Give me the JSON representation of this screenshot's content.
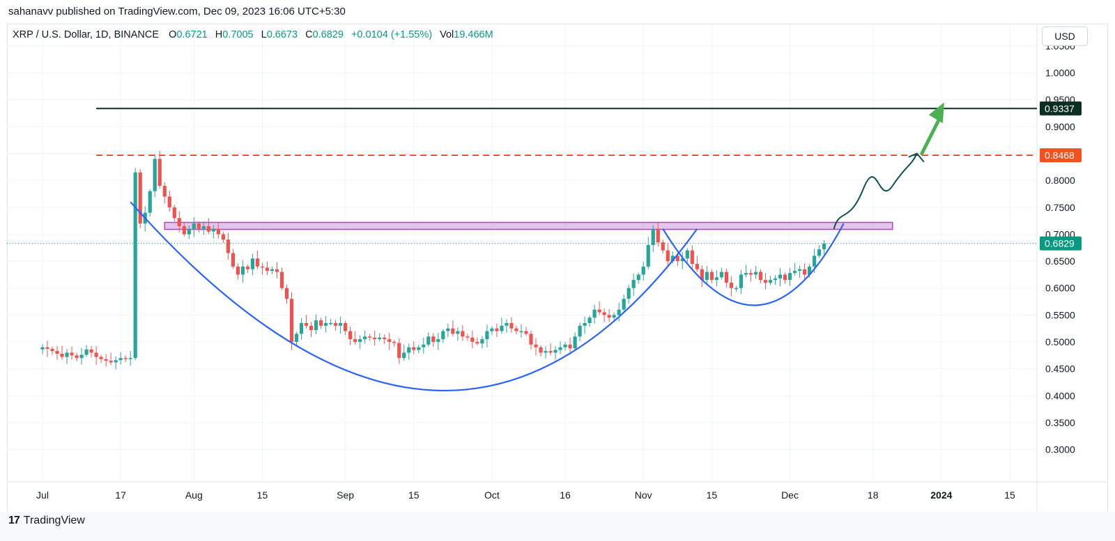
{
  "publisher_line": "sahanavv published on TradingView.com, Dec 09, 2023 16:06 UTC+5:30",
  "legend": {
    "symbol": "XRP / U.S. Dollar, 1D, BINANCE",
    "open_label": "O",
    "open": "0.6721",
    "high_label": "H",
    "high": "0.7005",
    "low_label": "L",
    "low": "0.6673",
    "close_label": "C",
    "close": "0.6829",
    "change": "+0.0104 (+1.55%)",
    "vol_label": "Vol",
    "vol": "19.466M"
  },
  "currency_button": "USD",
  "footer": {
    "brand": "TradingView",
    "logo_glyph": "17"
  },
  "colors": {
    "up": "#26a69a",
    "down": "#ef5350",
    "resistance": "#0b2e22",
    "dashed": "#f4511e",
    "zone": "#ce93d8",
    "curve": "#2962ff",
    "arrow": "#4caf50",
    "path": "#0d4f4a",
    "price_line": "#089981"
  },
  "chart_data": {
    "type": "candlestick",
    "title": "XRP / U.S. Dollar, 1D, BINANCE",
    "start_date": "2023-06-25",
    "ylim": [
      0.24,
      1.09
    ],
    "yticks": [
      "1.0500",
      "1.0000",
      "0.9500",
      "0.9000",
      "0.8500",
      "0.8000",
      "0.7500",
      "0.7000",
      "0.6500",
      "0.6000",
      "0.5500",
      "0.5000",
      "0.4500",
      "0.4000",
      "0.3500",
      "0.3000"
    ],
    "xticks": [
      {
        "label": "Jul",
        "date": "2023-07-01"
      },
      {
        "label": "17",
        "date": "2023-07-17"
      },
      {
        "label": "Aug",
        "date": "2023-08-01"
      },
      {
        "label": "15",
        "date": "2023-08-15"
      },
      {
        "label": "Sep",
        "date": "2023-09-01"
      },
      {
        "label": "15",
        "date": "2023-09-15"
      },
      {
        "label": "Oct",
        "date": "2023-10-01"
      },
      {
        "label": "16",
        "date": "2023-10-16"
      },
      {
        "label": "Nov",
        "date": "2023-11-01"
      },
      {
        "label": "15",
        "date": "2023-11-15"
      },
      {
        "label": "Dec",
        "date": "2023-12-01"
      },
      {
        "label": "18",
        "date": "2023-12-18"
      },
      {
        "label": "2024",
        "date": "2024-01-01"
      },
      {
        "label": "15",
        "date": "2024-01-15"
      }
    ],
    "closes": [
      0.49,
      0.487,
      0.483,
      0.478,
      0.472,
      0.48,
      0.475,
      0.47,
      0.476,
      0.486,
      0.48,
      0.472,
      0.468,
      0.465,
      0.462,
      0.466,
      0.47,
      0.468,
      0.47,
      0.815,
      0.72,
      0.74,
      0.78,
      0.84,
      0.79,
      0.77,
      0.75,
      0.73,
      0.715,
      0.7,
      0.71,
      0.72,
      0.71,
      0.715,
      0.705,
      0.71,
      0.7,
      0.69,
      0.665,
      0.64,
      0.625,
      0.64,
      0.635,
      0.655,
      0.64,
      0.638,
      0.632,
      0.635,
      0.63,
      0.6,
      0.58,
      0.5,
      0.515,
      0.535,
      0.53,
      0.522,
      0.54,
      0.53,
      0.535,
      0.535,
      0.53,
      0.535,
      0.52,
      0.505,
      0.5,
      0.505,
      0.51,
      0.508,
      0.505,
      0.508,
      0.505,
      0.5,
      0.498,
      0.47,
      0.48,
      0.49,
      0.485,
      0.49,
      0.495,
      0.51,
      0.5,
      0.505,
      0.52,
      0.525,
      0.515,
      0.52,
      0.51,
      0.508,
      0.5,
      0.497,
      0.505,
      0.52,
      0.525,
      0.52,
      0.53,
      0.535,
      0.525,
      0.52,
      0.52,
      0.515,
      0.495,
      0.49,
      0.48,
      0.483,
      0.48,
      0.485,
      0.49,
      0.495,
      0.488,
      0.51,
      0.53,
      0.535,
      0.545,
      0.56,
      0.555,
      0.55,
      0.545,
      0.55,
      0.56,
      0.58,
      0.6,
      0.615,
      0.625,
      0.64,
      0.68,
      0.71,
      0.685,
      0.67,
      0.65,
      0.66,
      0.65,
      0.655,
      0.67,
      0.645,
      0.635,
      0.615,
      0.63,
      0.615,
      0.62,
      0.63,
      0.61,
      0.6,
      0.6,
      0.625,
      0.628,
      0.625,
      0.63,
      0.615,
      0.61,
      0.615,
      0.618,
      0.625,
      0.615,
      0.628,
      0.632,
      0.635,
      0.625,
      0.64,
      0.66,
      0.672,
      0.683
    ],
    "annotations": [
      {
        "type": "horizontal_line",
        "label": "0.9337",
        "value": 0.9337,
        "from_date": "2023-07-12"
      },
      {
        "type": "horizontal_dashed",
        "label": "0.8468",
        "value": 0.8468,
        "from_date": "2023-07-12"
      },
      {
        "type": "zone",
        "from_date": "2023-07-26",
        "to_date": "2023-12-22",
        "low": 0.709,
        "high": 0.722
      },
      {
        "type": "price_line",
        "label": "0.6829",
        "value": 0.6829
      },
      {
        "type": "bowl_curve",
        "points": [
          [
            "2023-07-19",
            0.76
          ],
          [
            "2023-09-19",
            0.41
          ],
          [
            "2023-11-12",
            0.71
          ]
        ]
      },
      {
        "type": "bowl_curve",
        "points": [
          [
            "2023-11-05",
            0.71
          ],
          [
            "2023-11-24",
            0.568
          ],
          [
            "2023-12-12",
            0.72
          ]
        ]
      },
      {
        "type": "projection_path",
        "points": [
          [
            "2023-12-10",
            0.71
          ],
          [
            "2023-12-16",
            0.745
          ],
          [
            "2023-12-22",
            0.79
          ],
          [
            "2023-12-27",
            0.85
          ]
        ]
      },
      {
        "type": "arrow",
        "from": [
          "2023-12-28",
          0.85
        ],
        "to": [
          "2024-01-01",
          0.94
        ]
      }
    ]
  }
}
